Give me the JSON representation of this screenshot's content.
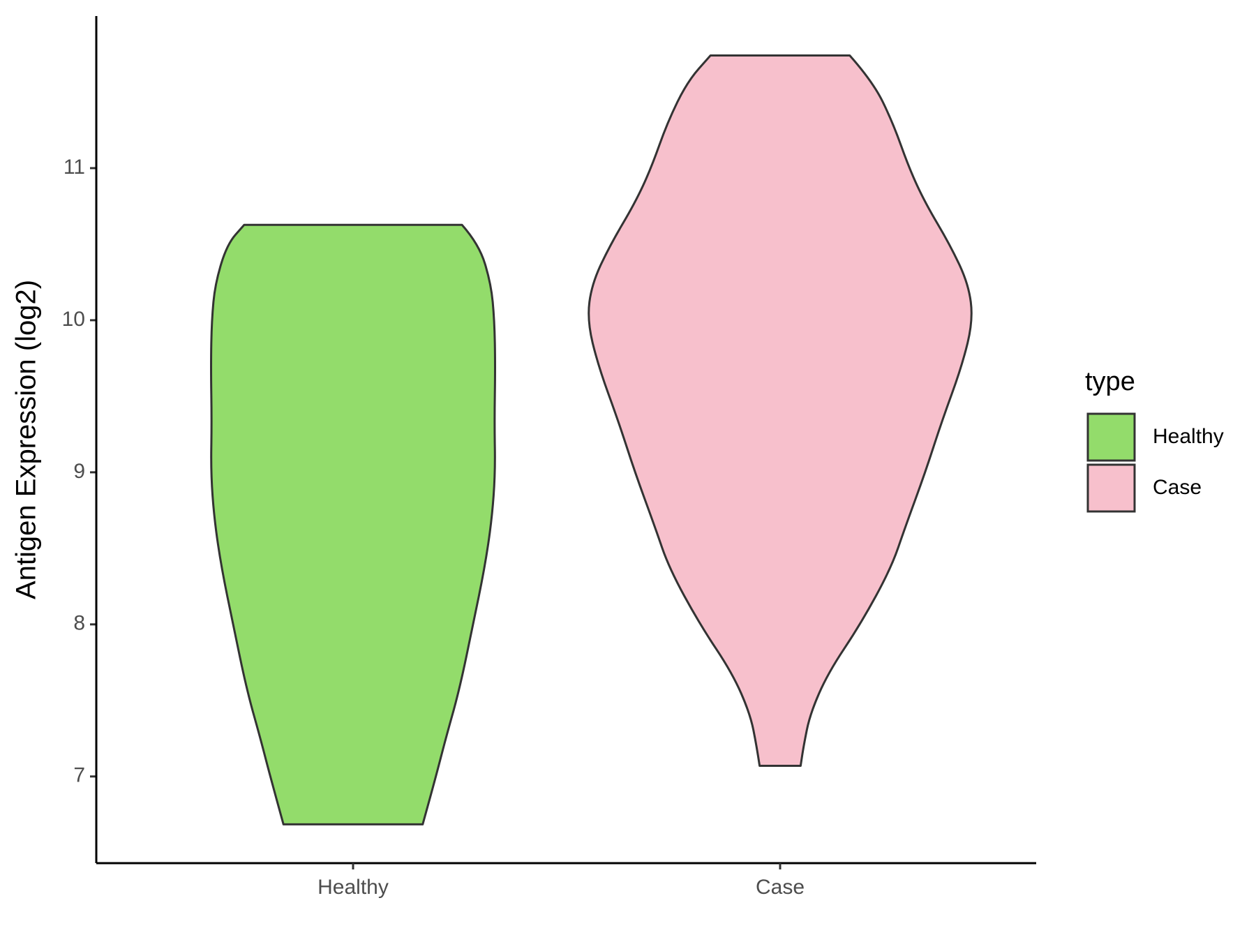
{
  "chart_data": {
    "type": "violin",
    "y_label": "Antigen Expression (log2)",
    "categories": [
      "Healthy",
      "Case"
    ],
    "legend_title": "type",
    "legend_position": "right",
    "series": [
      {
        "name": "Healthy",
        "color": "#93dc6b",
        "y": [
          10.627,
          10.5,
          10.24,
          10.0,
          9.7,
          9.33,
          9.0,
          8.69,
          8.37,
          8.0,
          7.57,
          7.25,
          7.0,
          6.685
        ],
        "density": [
          0.255,
          0.295,
          0.323,
          0.331,
          0.333,
          0.331,
          0.333,
          0.325,
          0.308,
          0.281,
          0.249,
          0.217,
          0.194,
          0.163
        ]
      },
      {
        "name": "Case",
        "color": "#f7c0cc",
        "y": [
          11.741,
          11.57,
          11.3,
          11.0,
          10.77,
          10.5,
          10.24,
          10.0,
          9.7,
          9.33,
          9.0,
          8.64,
          8.37,
          8.0,
          7.68,
          7.41,
          7.2,
          7.07
        ],
        "density": [
          0.163,
          0.217,
          0.264,
          0.302,
          0.34,
          0.397,
          0.441,
          0.452,
          0.426,
          0.378,
          0.34,
          0.293,
          0.26,
          0.188,
          0.112,
          0.07,
          0.055,
          0.048
        ]
      }
    ],
    "ylim": [
      6.43,
      12.0
    ],
    "yticks": [
      7,
      8,
      9,
      10,
      11
    ],
    "grid": false
  }
}
